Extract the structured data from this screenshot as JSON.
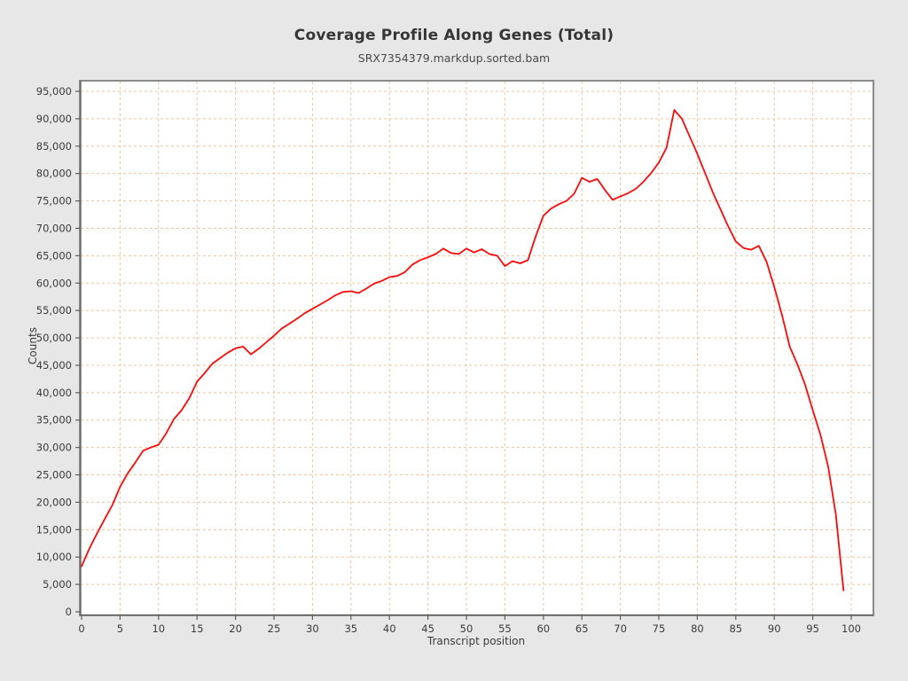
{
  "window": {
    "background": "#e7e7e7"
  },
  "chart_data": {
    "type": "line",
    "title": "Coverage Profile Along Genes (Total)",
    "subtitle": "SRX7354379.markdup.sorted.bam",
    "xlabel": "Transcript position",
    "ylabel": "Counts",
    "x": {
      "start": 0,
      "step": 1,
      "count": 100
    },
    "values": [
      8300,
      11500,
      14300,
      16900,
      19500,
      22800,
      25300,
      27300,
      29400,
      30000,
      30500,
      32600,
      35200,
      36800,
      39000,
      42000,
      43600,
      45300,
      46300,
      47300,
      48100,
      48400,
      47000,
      48000,
      49200,
      50400,
      51700,
      52600,
      53500,
      54500,
      55300,
      56100,
      56900,
      57800,
      58400,
      58500,
      58200,
      59000,
      59900,
      60400,
      61100,
      61300,
      62000,
      63400,
      64200,
      64700,
      65300,
      66300,
      65500,
      65300,
      66300,
      65600,
      66200,
      65300,
      65000,
      63100,
      64000,
      63600,
      64200,
      68500,
      72300,
      73600,
      74400,
      75000,
      76300,
      79200,
      78500,
      79000,
      77000,
      75200,
      75800,
      76400,
      77200,
      78500,
      80100,
      82000,
      84700,
      91600,
      90000,
      86800,
      83600,
      80100,
      76600,
      73500,
      70400,
      67600,
      66400,
      66100,
      66800,
      63900,
      59300,
      54200,
      48400,
      45200,
      41500,
      36800,
      32300,
      26500,
      17800,
      3900
    ],
    "xlim": [
      0,
      103
    ],
    "ylim": [
      0,
      97000
    ],
    "x_tick_step": 5,
    "x_tick_max": 100,
    "y_tick_step": 5000,
    "y_tick_max": 95000,
    "grid": true,
    "legend": false,
    "styles": {
      "line_color": "#fb0a08",
      "grid_color": "#f0c39e",
      "plot_bg": "#ffffff",
      "frame_color": "#8a8a8a",
      "axis_color": "#5e5e5e",
      "tick_text_color": "#3a3a3a"
    }
  }
}
